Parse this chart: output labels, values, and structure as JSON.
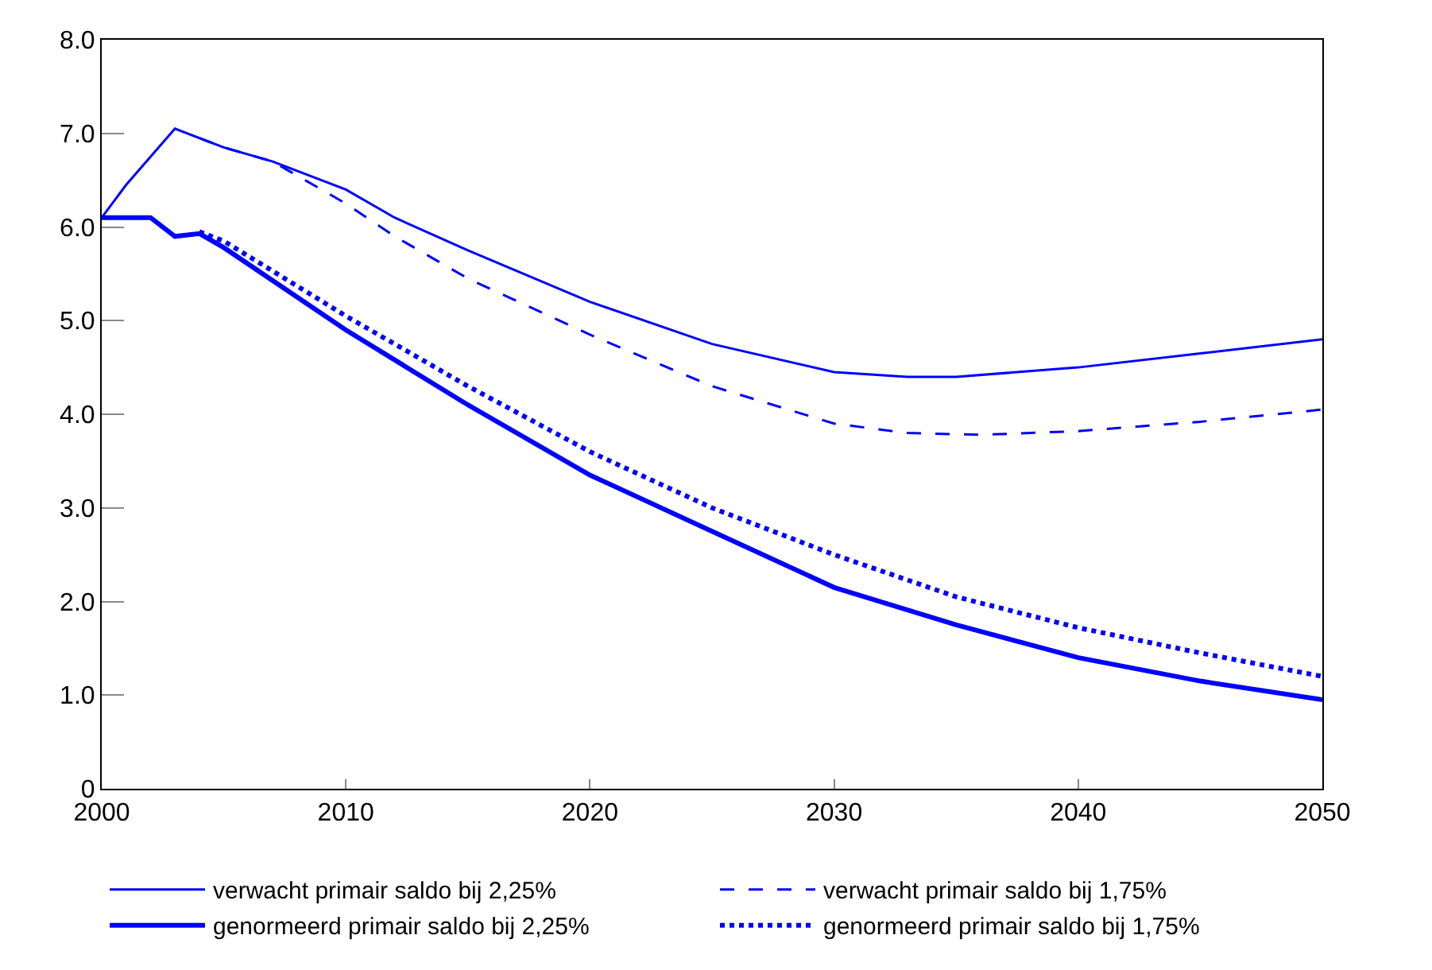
{
  "chart_data": {
    "type": "line",
    "xlim": [
      2000,
      2050
    ],
    "xticks": [
      2000,
      2010,
      2020,
      2030,
      2040,
      2050
    ],
    "ylim": [
      0,
      8
    ],
    "yticks": [
      {
        "value": 0,
        "label": "0"
      },
      {
        "value": 1,
        "label": "1.0"
      },
      {
        "value": 2,
        "label": "2.0"
      },
      {
        "value": 3,
        "label": "3.0"
      },
      {
        "value": 4,
        "label": "4.0"
      },
      {
        "value": 5,
        "label": "5.0"
      },
      {
        "value": 6,
        "label": "6.0"
      },
      {
        "value": 7,
        "label": "7.0"
      },
      {
        "value": 8,
        "label": "8.0"
      }
    ],
    "grid": false,
    "legend": "bottom",
    "marker": "none",
    "series": [
      {
        "name": "verwacht primair saldo bij 2,25%",
        "color": "#0000ff",
        "line_style": "solid",
        "x": [
          2000,
          2001,
          2003,
          2005,
          2007,
          2010,
          2012,
          2015,
          2020,
          2025,
          2030,
          2033,
          2035,
          2040,
          2045,
          2050
        ],
        "values": [
          6.1,
          6.45,
          7.05,
          6.85,
          6.7,
          6.4,
          6.1,
          5.75,
          5.2,
          4.75,
          4.45,
          4.4,
          4.4,
          4.5,
          4.65,
          4.8
        ]
      },
      {
        "name": "verwacht primair saldo bij 1,75%",
        "color": "#0000ff",
        "line_style": "dashed",
        "x": [
          2004,
          2005,
          2007,
          2010,
          2012,
          2015,
          2020,
          2025,
          2030,
          2033,
          2036,
          2040,
          2045,
          2050
        ],
        "values": [
          6.95,
          6.85,
          6.7,
          6.25,
          5.9,
          5.45,
          4.85,
          4.3,
          3.9,
          3.8,
          3.78,
          3.82,
          3.92,
          4.05
        ]
      },
      {
        "name": "genormeerd primair saldo bij 2,25%",
        "color": "#0000ff",
        "line_style": "solid",
        "x": [
          2000,
          2002,
          2003,
          2004,
          2005,
          2010,
          2015,
          2020,
          2025,
          2030,
          2035,
          2040,
          2045,
          2050
        ],
        "values": [
          6.1,
          6.1,
          5.9,
          5.93,
          5.78,
          4.9,
          4.1,
          3.35,
          2.75,
          2.15,
          1.75,
          1.4,
          1.15,
          0.95
        ]
      },
      {
        "name": "genormeerd primair saldo bij 1,75%",
        "color": "#0000ff",
        "line_style": "dotted",
        "x": [
          2004,
          2005,
          2010,
          2015,
          2020,
          2025,
          2030,
          2035,
          2040,
          2045,
          2050
        ],
        "values": [
          5.95,
          5.85,
          5.05,
          4.3,
          3.6,
          3.0,
          2.5,
          2.05,
          1.72,
          1.45,
          1.2
        ]
      }
    ]
  }
}
